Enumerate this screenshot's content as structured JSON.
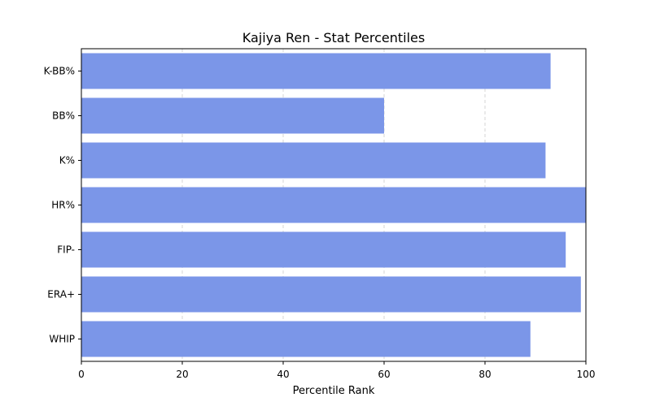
{
  "chart_data": {
    "type": "bar",
    "orientation": "horizontal",
    "title": "Kajiya Ren - Stat Percentiles",
    "xlabel": "Percentile Rank",
    "ylabel": "",
    "categories": [
      "WHIP",
      "ERA+",
      "FIP-",
      "HR%",
      "K%",
      "BB%",
      "K-BB%"
    ],
    "values": [
      89,
      99,
      96,
      100,
      92,
      60,
      93
    ],
    "xlim": [
      0,
      100
    ],
    "xticks": [
      0,
      20,
      40,
      60,
      80,
      100
    ],
    "grid": "vertical dashed",
    "bar_color": "#7b96e8",
    "legend": "none"
  }
}
